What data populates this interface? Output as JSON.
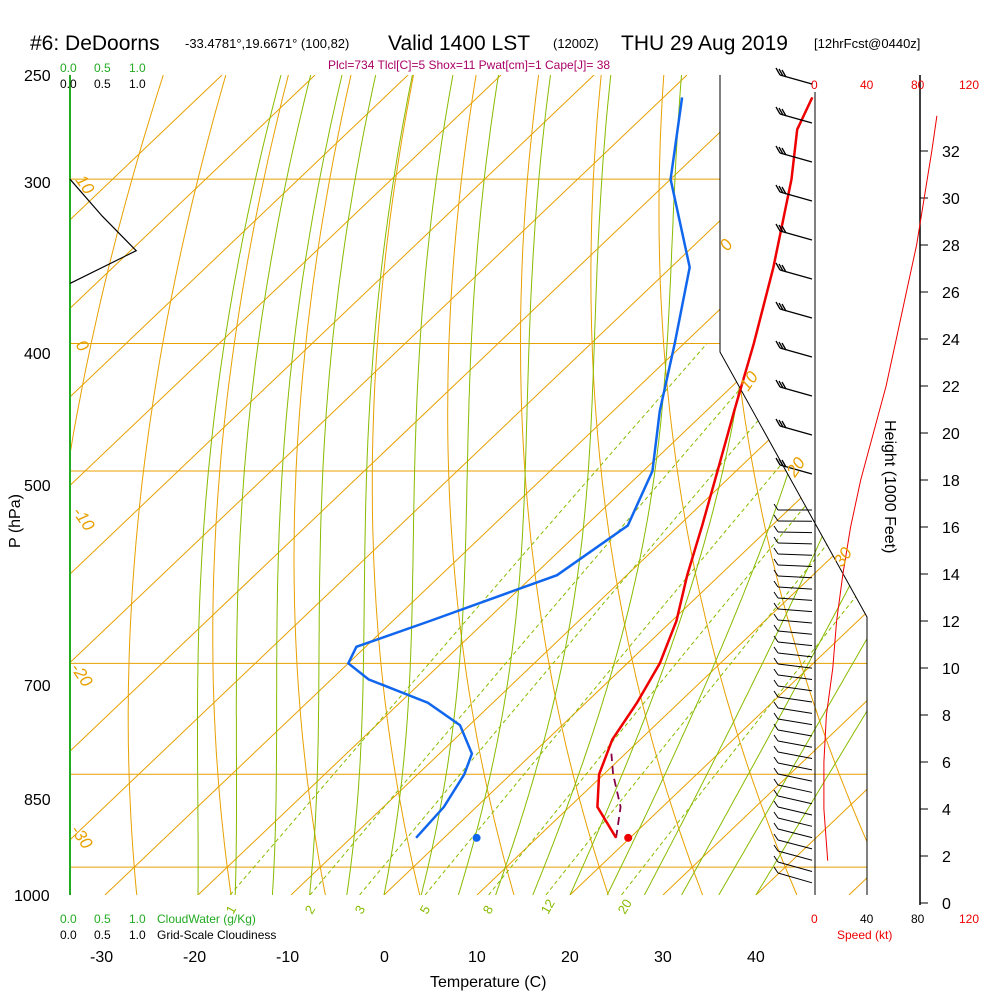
{
  "header": {
    "station": "#6: DeDoorns",
    "coords": "-33.4781°,19.6671° (100,82)",
    "valid": "Valid 1400 LST",
    "utc": "(1200Z)",
    "date": "THU 29 Aug 2019",
    "forecast": "[12hrFcst@0440z]",
    "indices": "Plcl=734 Tlcl[C]=5 Shox=11 Pwat[cm]=1 Cape[J]= 38"
  },
  "colors": {
    "temperature": "#ee0000",
    "dewpoint": "#1166ee",
    "isobar": "#e8a000",
    "dry_adiabat": "#e8a000",
    "moist_adiabat": "#88bb00",
    "mixing_ratio": "#88bb00",
    "cloudwater": "#22aa22",
    "wind_speed": "#ee0000",
    "parcel": "#880044"
  },
  "chart_data": {
    "type": "line",
    "title": "Skew-T sounding",
    "xlabel": "Temperature (C)",
    "ylabel": "P (hPa)",
    "right_axis_label": "Height (1000 Feet)",
    "wind_axis_label": "Speed (kt)",
    "x_ticks": [
      "-30",
      "-20",
      "-10",
      "0",
      "10",
      "20",
      "30",
      "40"
    ],
    "y_ticks": [
      "250",
      "300",
      "400",
      "500",
      "700",
      "850",
      "1000"
    ],
    "height_ticks": [
      "0",
      "2",
      "4",
      "6",
      "8",
      "10",
      "12",
      "14",
      "16",
      "18",
      "20",
      "22",
      "24",
      "26",
      "28",
      "30",
      "32"
    ],
    "wind_ticks_top": [
      "0",
      "40",
      "80",
      "120"
    ],
    "wind_ticks_bottom": [
      "0",
      "40",
      "80",
      "120"
    ],
    "cloudwater_label": "CloudWater (g/Kg)",
    "cloudiness_label": "Grid-Scale Cloudiness",
    "scale_ticks": [
      "0.0",
      "0.5",
      "1.0"
    ],
    "isotherm_labels": [
      "-10",
      "0",
      "10",
      "20",
      "30"
    ],
    "dry_adiabat_labels": [
      "0",
      "10",
      "20",
      "30",
      "-10",
      "-20",
      "-30"
    ],
    "mixing_ratio_labels": [
      "1",
      "2",
      "3",
      "5",
      "8",
      "12",
      "20"
    ],
    "temperature_profile": [
      {
        "p": 950,
        "t": 18.5
      },
      {
        "p": 900,
        "t": 13.0
      },
      {
        "p": 850,
        "t": 9.5
      },
      {
        "p": 800,
        "t": 7.0
      },
      {
        "p": 750,
        "t": 5.5
      },
      {
        "p": 700,
        "t": 3.5
      },
      {
        "p": 650,
        "t": 0.5
      },
      {
        "p": 600,
        "t": -3.5
      },
      {
        "p": 550,
        "t": -7.5
      },
      {
        "p": 500,
        "t": -12.0
      },
      {
        "p": 450,
        "t": -17.0
      },
      {
        "p": 400,
        "t": -22.5
      },
      {
        "p": 350,
        "t": -29.0
      },
      {
        "p": 300,
        "t": -37.0
      },
      {
        "p": 275,
        "t": -42.0
      },
      {
        "p": 260,
        "t": -44.0
      }
    ],
    "dewpoint_profile": [
      {
        "p": 950,
        "t": -3.0
      },
      {
        "p": 900,
        "t": -3.5
      },
      {
        "p": 850,
        "t": -5.0
      },
      {
        "p": 820,
        "t": -6.5
      },
      {
        "p": 780,
        "t": -11.0
      },
      {
        "p": 750,
        "t": -17.0
      },
      {
        "p": 720,
        "t": -26.0
      },
      {
        "p": 700,
        "t": -30.0
      },
      {
        "p": 680,
        "t": -31.0
      },
      {
        "p": 650,
        "t": -26.0
      },
      {
        "p": 600,
        "t": -17.5
      },
      {
        "p": 550,
        "t": -15.5
      },
      {
        "p": 500,
        "t": -19.0
      },
      {
        "p": 450,
        "t": -25.0
      },
      {
        "p": 400,
        "t": -31.0
      },
      {
        "p": 350,
        "t": -38.0
      },
      {
        "p": 300,
        "t": -50.0
      },
      {
        "p": 260,
        "t": -58.0
      }
    ],
    "parcel_profile": [
      {
        "p": 950,
        "t": 18.5
      },
      {
        "p": 900,
        "t": 15.5
      },
      {
        "p": 850,
        "t": 11.0
      },
      {
        "p": 820,
        "t": 8.5
      }
    ],
    "surface_temperature": {
      "p": 950,
      "t": 19.8
    },
    "surface_dewpoint": {
      "p": 950,
      "t": 3.5
    },
    "cloudiness": [
      {
        "p": 300,
        "v": 0.0
      },
      {
        "p": 320,
        "v": 0.35
      },
      {
        "p": 340,
        "v": 0.72
      },
      {
        "p": 360,
        "v": 0.0
      }
    ],
    "wind_speed_profile": [
      {
        "h": 1.8,
        "kt": 10
      },
      {
        "h": 4,
        "kt": 7
      },
      {
        "h": 6,
        "kt": 7
      },
      {
        "h": 8,
        "kt": 9
      },
      {
        "h": 10,
        "kt": 14
      },
      {
        "h": 12,
        "kt": 17
      },
      {
        "h": 14,
        "kt": 22
      },
      {
        "h": 16,
        "kt": 28
      },
      {
        "h": 18,
        "kt": 36
      },
      {
        "h": 20,
        "kt": 46
      },
      {
        "h": 22,
        "kt": 56
      },
      {
        "h": 24,
        "kt": 64
      },
      {
        "h": 26,
        "kt": 72
      },
      {
        "h": 28,
        "kt": 80
      },
      {
        "h": 30,
        "kt": 86
      },
      {
        "h": 32,
        "kt": 92
      },
      {
        "h": 33.5,
        "kt": 96
      }
    ]
  }
}
